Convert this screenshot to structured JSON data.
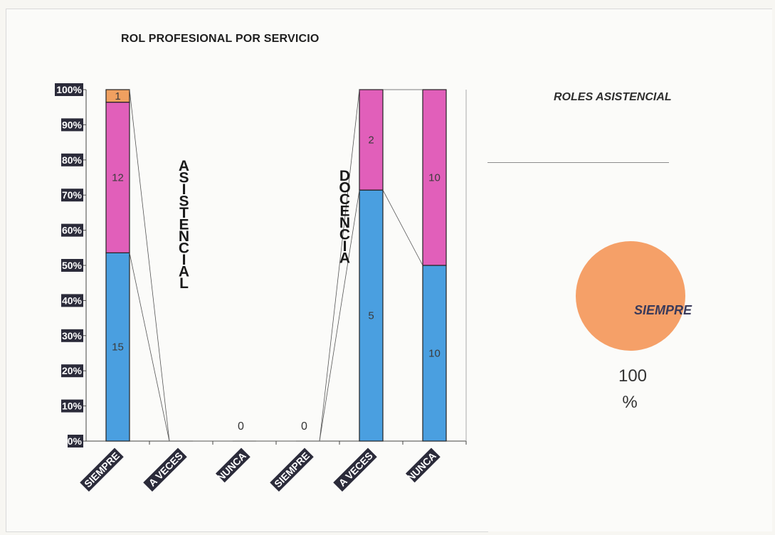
{
  "chart_data": [
    {
      "type": "bar",
      "stacked": "100%",
      "title": "ROL PROFESIONAL POR SERVICIO",
      "categories": [
        "SIEMPRE",
        "A VECES",
        "NUNCA",
        "SIEMPRE",
        "A VECES",
        "NUNCA"
      ],
      "group_labels": [
        "ASISTENCIAL",
        "DOCENCIA"
      ],
      "yticks": [
        "0%",
        "10%",
        "20%",
        "30%",
        "40%",
        "50%",
        "60%",
        "70%",
        "80%",
        "90%",
        "100%"
      ],
      "ylim": [
        0,
        100
      ],
      "series": [
        {
          "color": "#4a9fe0",
          "values": [
            15,
            0,
            0,
            0,
            5,
            10
          ]
        },
        {
          "color": "#e15fba",
          "values": [
            12,
            0,
            0,
            0,
            2,
            10
          ]
        },
        {
          "color": "#f0a060",
          "values": [
            1,
            0,
            0,
            0,
            0,
            0
          ]
        }
      ],
      "zero_labels": [
        "0",
        "0"
      ],
      "grid": false
    },
    {
      "type": "pie",
      "title": "ROLES ASISTENCIAL",
      "slices": [
        {
          "label": "SIEMPRE",
          "value": 100,
          "percent_label": "100",
          "percent_sign": "%",
          "color": "#f5a068"
        }
      ]
    }
  ]
}
